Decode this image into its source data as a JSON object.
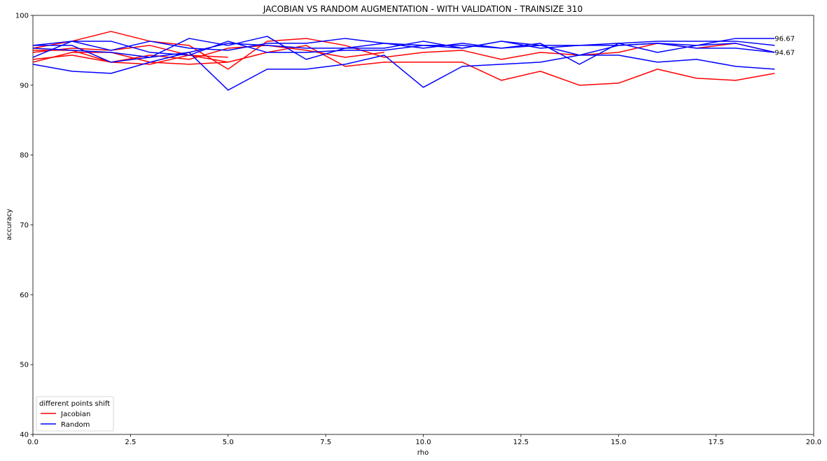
{
  "chart_data": {
    "type": "line",
    "title": "JACOBIAN VS RANDOM AUGMENTATION - WITH VALIDATION - TRAINSIZE 310",
    "xlabel": "rho",
    "ylabel": "accuracy",
    "xlim": [
      0,
      20
    ],
    "ylim": [
      40,
      100
    ],
    "xticks": [
      0,
      2.5,
      5,
      7.5,
      10,
      12.5,
      15,
      17.5,
      20
    ],
    "xtick_labels": [
      "0.0",
      "2.5",
      "5.0",
      "7.5",
      "10.0",
      "12.5",
      "15.0",
      "17.5",
      "20.0"
    ],
    "yticks": [
      40,
      50,
      60,
      70,
      80,
      90,
      100
    ],
    "ytick_labels": [
      "40",
      "50",
      "60",
      "70",
      "80",
      "90",
      "100"
    ],
    "grid": false,
    "legend": {
      "title": "different points shift",
      "placement": "lower-left",
      "entries": [
        {
          "label": "Jacobian",
          "color": "#ff0000"
        },
        {
          "label": "Random",
          "color": "#0000ff"
        }
      ]
    },
    "series": [
      {
        "group": "Jacobian",
        "color": "#ff0000",
        "x": [
          0,
          1,
          2,
          3,
          4,
          5,
          6,
          7,
          8,
          9,
          10,
          11,
          12,
          13,
          14,
          15,
          16,
          17,
          18,
          19
        ],
        "y": [
          93.3,
          94.7,
          94.7,
          93.3,
          93.0,
          93.3,
          94.7,
          95.7,
          92.7,
          93.3,
          93.3,
          93.3,
          90.7,
          92.0,
          90.0,
          90.3,
          92.3,
          91.0,
          90.7,
          91.7
        ]
      },
      {
        "group": "Jacobian",
        "color": "#ff0000",
        "x": [
          0,
          1,
          2,
          3,
          4,
          5,
          6,
          7,
          8,
          9,
          10,
          11,
          12,
          13,
          14,
          15,
          16,
          17,
          18,
          19
        ],
        "y": [
          95.3,
          96.3,
          97.7,
          96.3,
          95.7,
          92.3,
          96.3,
          96.7,
          95.7,
          94.0,
          94.7,
          95.0,
          93.7,
          94.7,
          94.3,
          94.7,
          96.0,
          95.3,
          96.0,
          94.7
        ]
      },
      {
        "group": "Jacobian",
        "color": "#ff0000",
        "x": [
          0,
          1,
          2,
          3,
          4,
          5
        ],
        "y": [
          95.0,
          95.0,
          93.3,
          93.0,
          94.3,
          94.0
        ]
      },
      {
        "group": "Jacobian",
        "color": "#ff0000",
        "x": [
          0,
          1,
          2,
          3,
          4,
          5
        ],
        "y": [
          94.7,
          95.3,
          95.0,
          95.7,
          94.3,
          93.3
        ]
      },
      {
        "group": "Jacobian",
        "color": "#ff0000",
        "x": [
          0,
          1,
          2,
          3,
          4,
          5,
          6,
          7,
          8,
          9
        ],
        "y": [
          93.7,
          94.3,
          93.3,
          94.3,
          93.7,
          95.3,
          95.7,
          95.0,
          94.0,
          94.7
        ]
      },
      {
        "group": "Random",
        "color": "#0000ff",
        "x": [
          0,
          1,
          2,
          3,
          4,
          5,
          6,
          7,
          8,
          9,
          10,
          11,
          12,
          13,
          14,
          15,
          16,
          17,
          18,
          19
        ],
        "y": [
          95.7,
          96.3,
          96.3,
          94.7,
          94.3,
          96.3,
          94.7,
          94.7,
          95.0,
          95.0,
          95.7,
          95.7,
          95.3,
          96.0,
          93.0,
          96.0,
          94.7,
          95.7,
          96.7,
          96.7
        ]
      },
      {
        "group": "Random",
        "color": "#0000ff",
        "x": [
          0,
          1,
          2,
          3,
          4,
          5,
          6,
          7,
          8,
          9,
          10,
          11,
          12,
          13,
          14,
          15,
          16,
          17,
          18,
          19
        ],
        "y": [
          95.3,
          95.0,
          94.7,
          94.0,
          96.7,
          95.7,
          97.0,
          93.7,
          95.3,
          96.0,
          95.7,
          95.3,
          96.3,
          95.3,
          95.7,
          96.0,
          96.3,
          96.3,
          96.3,
          95.7
        ]
      },
      {
        "group": "Random",
        "color": "#0000ff",
        "x": [
          0,
          1,
          2,
          3,
          4,
          5,
          6,
          7,
          8,
          9,
          10,
          11,
          12,
          13,
          14,
          15,
          16,
          17,
          18,
          19
        ],
        "y": [
          93.0,
          92.0,
          91.7,
          93.3,
          94.7,
          89.3,
          92.3,
          92.3,
          93.0,
          94.3,
          89.7,
          92.7,
          93.0,
          93.3,
          94.3,
          94.3,
          93.3,
          93.7,
          92.7,
          92.3
        ]
      },
      {
        "group": "Random",
        "color": "#0000ff",
        "x": [
          0,
          1,
          2,
          3,
          4,
          5,
          6,
          7,
          8,
          9,
          10,
          11,
          12,
          13,
          14,
          15,
          16,
          17,
          18,
          19
        ],
        "y": [
          94.0,
          96.3,
          95.0,
          96.3,
          95.3,
          95.0,
          96.0,
          96.0,
          96.7,
          96.0,
          95.3,
          96.0,
          95.3,
          95.7,
          95.7,
          95.7,
          96.0,
          95.3,
          95.3,
          94.7
        ]
      },
      {
        "group": "Random",
        "color": "#0000ff",
        "x": [
          0,
          1,
          2,
          3,
          4,
          5,
          6,
          7,
          8,
          9,
          10,
          11,
          12,
          13,
          14,
          15,
          16,
          17,
          18,
          19
        ],
        "y": [
          95.7,
          95.7,
          93.3,
          94.0,
          94.7,
          96.0,
          95.7,
          95.3,
          95.3,
          95.3,
          96.3,
          95.3,
          96.3,
          95.7,
          94.3,
          95.7,
          96.0,
          95.7,
          96.0,
          94.7
        ]
      }
    ],
    "annotations": [
      {
        "text": "96.67",
        "x": 19,
        "y": 96.67
      },
      {
        "text": "94.67",
        "x": 19,
        "y": 94.67
      }
    ]
  }
}
